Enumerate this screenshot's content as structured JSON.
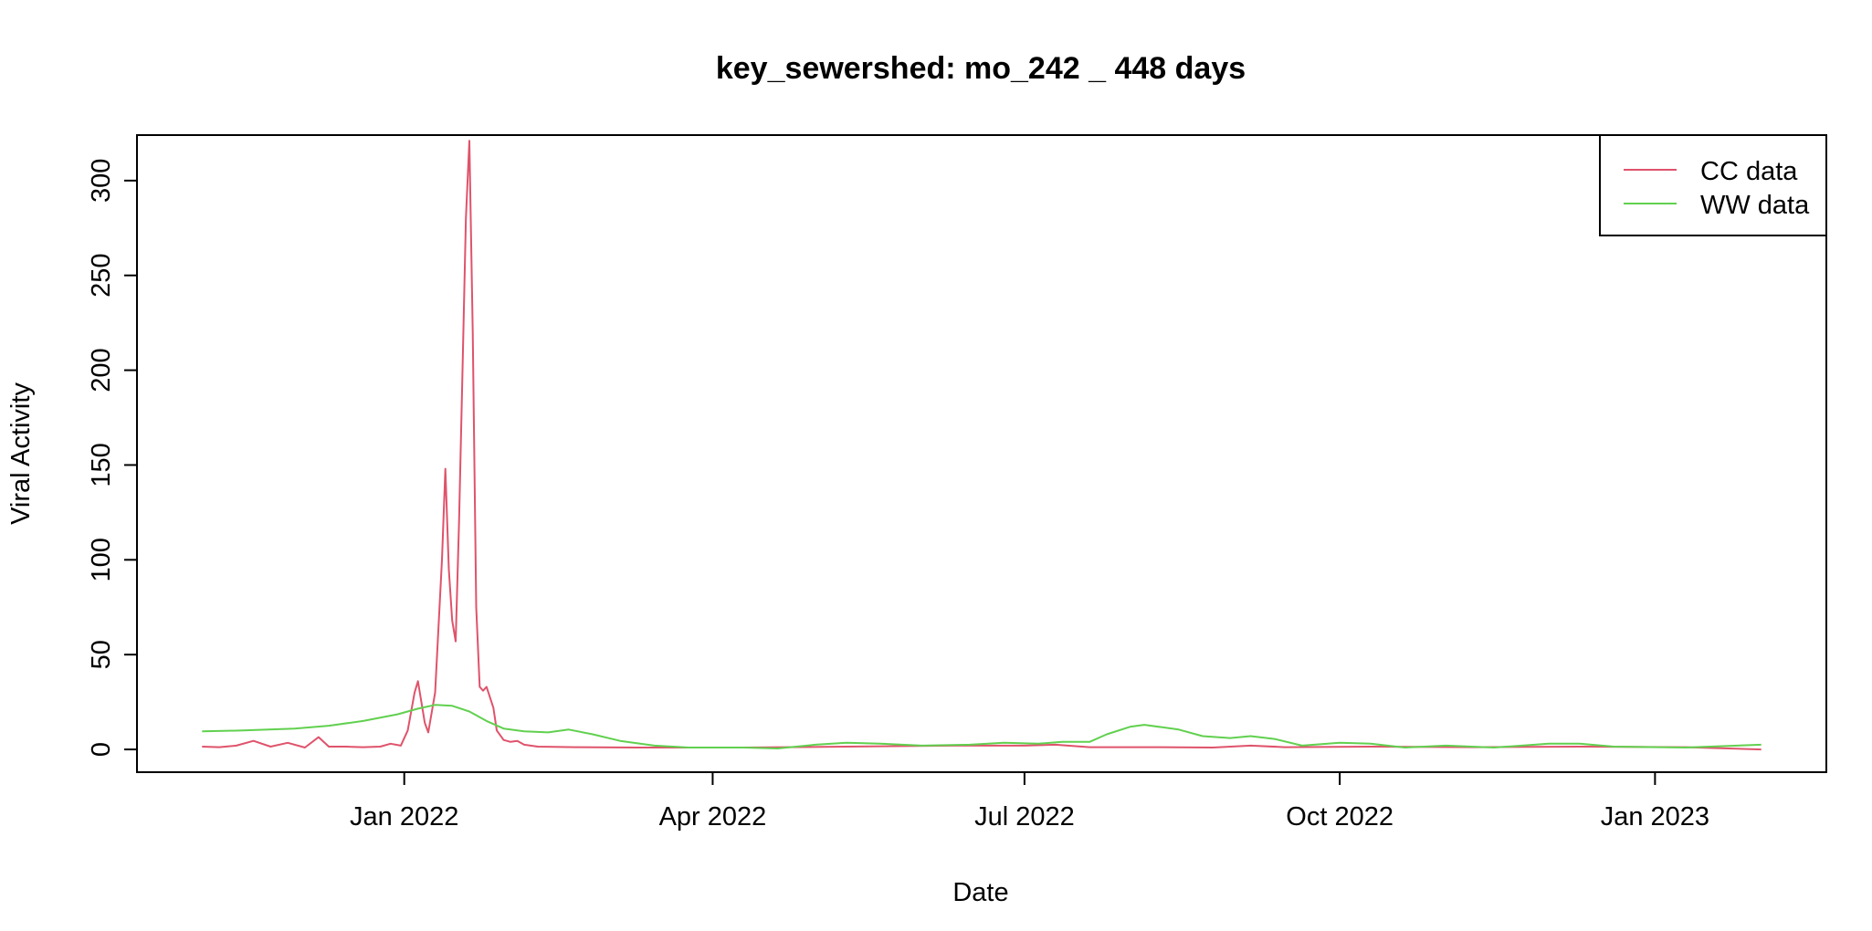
{
  "chart_data": {
    "type": "line",
    "title": "key_sewershed:  mo_242 _ 448  days",
    "xlabel": "Date",
    "ylabel": "Viral Activity",
    "xlim": [
      "2021-10-15",
      "2023-02-20"
    ],
    "ylim": [
      -12,
      324
    ],
    "x_ticks": [
      {
        "date": "2022-01-01",
        "label": "Jan 2022"
      },
      {
        "date": "2022-04-01",
        "label": "Apr 2022"
      },
      {
        "date": "2022-07-01",
        "label": "Jul 2022"
      },
      {
        "date": "2022-10-01",
        "label": "Oct 2022"
      },
      {
        "date": "2023-01-01",
        "label": "Jan 2023"
      }
    ],
    "y_ticks": [
      {
        "value": 0,
        "label": "0"
      },
      {
        "value": 50,
        "label": "50"
      },
      {
        "value": 100,
        "label": "100"
      },
      {
        "value": 150,
        "label": "150"
      },
      {
        "value": 200,
        "label": "200"
      },
      {
        "value": 250,
        "label": "250"
      },
      {
        "value": 300,
        "label": "300"
      }
    ],
    "legend": {
      "position": "top-right",
      "entries": [
        "CC data",
        "WW data"
      ]
    },
    "series": [
      {
        "name": "CC data",
        "color": "#DF536B",
        "points": [
          [
            "2021-11-03",
            1.5
          ],
          [
            "2021-11-08",
            1.2
          ],
          [
            "2021-11-13",
            2.0
          ],
          [
            "2021-11-18",
            4.5
          ],
          [
            "2021-11-23",
            1.5
          ],
          [
            "2021-11-28",
            3.5
          ],
          [
            "2021-12-03",
            1.0
          ],
          [
            "2021-12-07",
            6.5
          ],
          [
            "2021-12-10",
            1.5
          ],
          [
            "2021-12-15",
            1.5
          ],
          [
            "2021-12-20",
            1.2
          ],
          [
            "2021-12-25",
            1.5
          ],
          [
            "2021-12-28",
            3.0
          ],
          [
            "2021-12-31",
            2.0
          ],
          [
            "2022-01-02",
            10.0
          ],
          [
            "2022-01-04",
            30.0
          ],
          [
            "2022-01-05",
            36.0
          ],
          [
            "2022-01-07",
            14.0
          ],
          [
            "2022-01-08",
            9.0
          ],
          [
            "2022-01-10",
            30.0
          ],
          [
            "2022-01-12",
            100.0
          ],
          [
            "2022-01-13",
            148.0
          ],
          [
            "2022-01-14",
            95.0
          ],
          [
            "2022-01-15",
            68.0
          ],
          [
            "2022-01-16",
            57.0
          ],
          [
            "2022-01-17",
            120.0
          ],
          [
            "2022-01-18",
            200.0
          ],
          [
            "2022-01-19",
            280.0
          ],
          [
            "2022-01-20",
            321.0
          ],
          [
            "2022-01-21",
            220.0
          ],
          [
            "2022-01-22",
            75.0
          ],
          [
            "2022-01-23",
            33.0
          ],
          [
            "2022-01-24",
            31.0
          ],
          [
            "2022-01-25",
            33.0
          ],
          [
            "2022-01-27",
            22.0
          ],
          [
            "2022-01-28",
            10.0
          ],
          [
            "2022-01-30",
            5.0
          ],
          [
            "2022-02-01",
            4.0
          ],
          [
            "2022-02-03",
            4.5
          ],
          [
            "2022-02-05",
            2.5
          ],
          [
            "2022-02-09",
            1.5
          ],
          [
            "2022-02-20",
            1.2
          ],
          [
            "2022-03-10",
            1.0
          ],
          [
            "2022-04-10",
            1.0
          ],
          [
            "2022-05-10",
            1.5
          ],
          [
            "2022-06-10",
            2.0
          ],
          [
            "2022-07-01",
            2.0
          ],
          [
            "2022-07-10",
            2.5
          ],
          [
            "2022-07-20",
            1.2
          ],
          [
            "2022-08-10",
            1.2
          ],
          [
            "2022-08-25",
            1.0
          ],
          [
            "2022-09-05",
            2.0
          ],
          [
            "2022-09-15",
            1.2
          ],
          [
            "2022-10-10",
            1.5
          ],
          [
            "2022-11-10",
            1.2
          ],
          [
            "2022-12-10",
            1.5
          ],
          [
            "2023-01-10",
            1.2
          ],
          [
            "2023-02-01",
            0.0
          ]
        ]
      },
      {
        "name": "WW data",
        "color": "#61D04F",
        "points": [
          [
            "2021-11-03",
            9.5
          ],
          [
            "2021-11-15",
            10.0
          ],
          [
            "2021-11-30",
            11.0
          ],
          [
            "2021-12-10",
            12.5
          ],
          [
            "2021-12-20",
            15.0
          ],
          [
            "2021-12-30",
            18.5
          ],
          [
            "2022-01-05",
            21.5
          ],
          [
            "2022-01-10",
            23.5
          ],
          [
            "2022-01-15",
            23.0
          ],
          [
            "2022-01-20",
            20.0
          ],
          [
            "2022-01-25",
            15.0
          ],
          [
            "2022-01-30",
            11.0
          ],
          [
            "2022-02-05",
            9.5
          ],
          [
            "2022-02-12",
            9.0
          ],
          [
            "2022-02-18",
            10.5
          ],
          [
            "2022-02-25",
            8.0
          ],
          [
            "2022-03-05",
            4.5
          ],
          [
            "2022-03-15",
            2.0
          ],
          [
            "2022-03-25",
            1.0
          ],
          [
            "2022-04-10",
            1.0
          ],
          [
            "2022-04-20",
            0.5
          ],
          [
            "2022-05-01",
            2.5
          ],
          [
            "2022-05-10",
            3.5
          ],
          [
            "2022-05-20",
            3.0
          ],
          [
            "2022-06-01",
            2.0
          ],
          [
            "2022-06-15",
            2.5
          ],
          [
            "2022-06-25",
            3.5
          ],
          [
            "2022-07-05",
            3.0
          ],
          [
            "2022-07-12",
            4.0
          ],
          [
            "2022-07-20",
            4.0
          ],
          [
            "2022-07-25",
            8.0
          ],
          [
            "2022-08-01",
            12.0
          ],
          [
            "2022-08-05",
            13.0
          ],
          [
            "2022-08-15",
            10.5
          ],
          [
            "2022-08-22",
            7.0
          ],
          [
            "2022-08-30",
            6.0
          ],
          [
            "2022-09-05",
            7.0
          ],
          [
            "2022-09-12",
            5.5
          ],
          [
            "2022-09-20",
            2.0
          ],
          [
            "2022-10-01",
            3.5
          ],
          [
            "2022-10-10",
            3.0
          ],
          [
            "2022-10-20",
            1.0
          ],
          [
            "2022-11-01",
            2.0
          ],
          [
            "2022-11-15",
            1.0
          ],
          [
            "2022-12-01",
            3.0
          ],
          [
            "2022-12-10",
            3.0
          ],
          [
            "2022-12-20",
            1.5
          ],
          [
            "2023-01-10",
            1.0
          ],
          [
            "2023-02-01",
            2.5
          ]
        ]
      }
    ]
  }
}
